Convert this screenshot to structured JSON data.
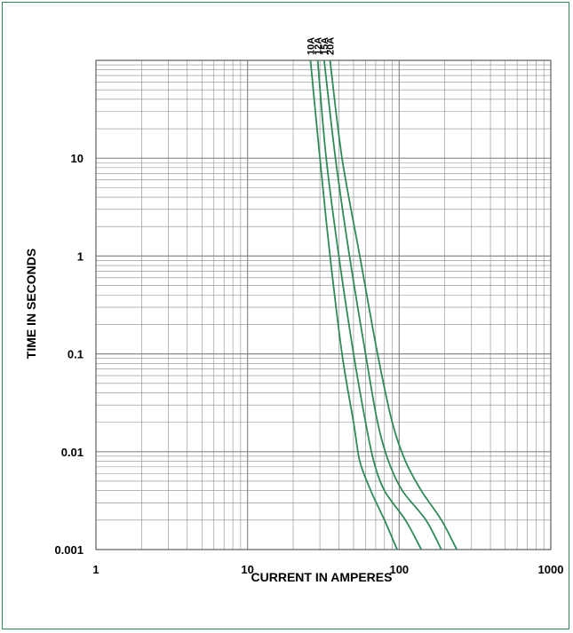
{
  "chart_data": {
    "type": "line",
    "xlabel": "CURRENT IN AMPERES",
    "ylabel": "TIME IN SECONDS",
    "x_scale": "log",
    "y_scale": "log",
    "xlim": [
      1,
      1000
    ],
    "ylim": [
      0.001,
      100
    ],
    "x_ticks": [
      1,
      10,
      100,
      1000
    ],
    "x_tick_labels": [
      "1",
      "10",
      "100",
      "1000"
    ],
    "y_ticks": [
      0.001,
      0.01,
      0.1,
      1,
      10
    ],
    "y_tick_labels": [
      "0.001",
      "0.01",
      "0.1",
      "1",
      "10"
    ],
    "grid": true,
    "line_color": "#2e8b57",
    "series": [
      {
        "name": "10A",
        "x": [
          26,
          30,
          35,
          42,
          50,
          55,
          65,
          80,
          97
        ],
        "y": [
          100,
          10,
          1,
          0.1,
          0.02,
          0.008,
          0.004,
          0.002,
          0.001
        ]
      },
      {
        "name": "12A",
        "x": [
          29,
          33,
          40,
          50,
          60,
          68,
          80,
          110,
          140
        ],
        "y": [
          100,
          10,
          1,
          0.1,
          0.02,
          0.008,
          0.004,
          0.002,
          0.001
        ]
      },
      {
        "name": "15A",
        "x": [
          32,
          38,
          47,
          60,
          72,
          85,
          105,
          150,
          190
        ],
        "y": [
          100,
          10,
          1,
          0.1,
          0.02,
          0.008,
          0.004,
          0.002,
          0.001
        ]
      },
      {
        "name": "20A",
        "x": [
          35,
          42,
          55,
          72,
          90,
          110,
          140,
          190,
          240
        ],
        "y": [
          100,
          10,
          1,
          0.1,
          0.02,
          0.008,
          0.004,
          0.002,
          0.001
        ]
      }
    ]
  }
}
